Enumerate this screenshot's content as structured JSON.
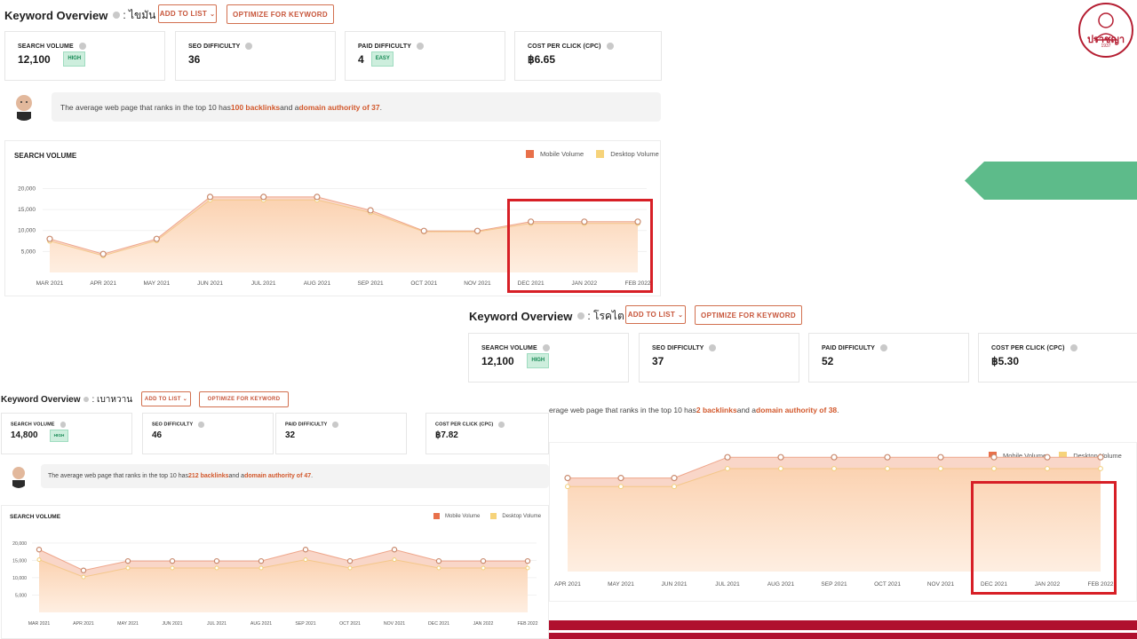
{
  "colors": {
    "accent": "#d2582c",
    "mobile": "#e8704a",
    "desktop": "#f6d37a",
    "badge_bg": "#cdeedd",
    "badge_text": "#178a55",
    "highlight": "#d71f26",
    "arrow": "#5dbb8a",
    "bottom_bar": "#b0102e"
  },
  "logo": {
    "text": "ปราชญา",
    "sub": "1937",
    "icon": "brand-logo"
  },
  "panels": [
    {
      "title": "Keyword Overview",
      "keyword": ": ไขมัน",
      "add_btn": "ADD TO LIST",
      "opt_btn": "OPTIMIZE FOR KEYWORD",
      "cards": [
        {
          "label": "SEARCH VOLUME",
          "value": "12,100",
          "badge": "HIGH"
        },
        {
          "label": "SEO DIFFICULTY",
          "value": "36",
          "badge": ""
        },
        {
          "label": "PAID DIFFICULTY",
          "value": "4",
          "badge": "EASY"
        },
        {
          "label": "COST PER CLICK (CPC)",
          "value": "฿6.65",
          "badge": ""
        }
      ],
      "tip": {
        "pre": "The average web page that ranks in the top 10 has ",
        "b1": "100 backlinks",
        "mid": " and a ",
        "b2": "domain authority of 37",
        "post": "."
      },
      "chart_title": "SEARCH VOLUME",
      "legend_mobile": "Mobile Volume",
      "legend_desktop": "Desktop Volume"
    },
    {
      "title": "Keyword Overview",
      "keyword": ": โรคไต",
      "add_btn": "ADD TO LIST",
      "opt_btn": "OPTIMIZE FOR KEYWORD",
      "cards": [
        {
          "label": "SEARCH VOLUME",
          "value": "12,100",
          "badge": "HIGH"
        },
        {
          "label": "SEO DIFFICULTY",
          "value": "37",
          "badge": ""
        },
        {
          "label": "PAID DIFFICULTY",
          "value": "52",
          "badge": ""
        },
        {
          "label": "COST PER CLICK (CPC)",
          "value": "฿5.30",
          "badge": ""
        }
      ],
      "tip": {
        "pre": "erage web page that ranks in the top 10 has ",
        "b1": "2 backlinks",
        "mid": " and a ",
        "b2": "domain authority of 38",
        "post": "."
      },
      "chart_title": "",
      "legend_mobile": "Mobile Volume",
      "legend_desktop": "Desktop Volume"
    },
    {
      "title": "Keyword Overview",
      "keyword": ": เบาหวาน",
      "add_btn": "ADD TO LIST",
      "opt_btn": "OPTIMIZE FOR KEYWORD",
      "cards": [
        {
          "label": "SEARCH VOLUME",
          "value": "14,800",
          "badge": "HIGH"
        },
        {
          "label": "SEO DIFFICULTY",
          "value": "46",
          "badge": ""
        },
        {
          "label": "PAID DIFFICULTY",
          "value": "32",
          "badge": ""
        },
        {
          "label": "COST PER CLICK (CPC)",
          "value": "฿7.82",
          "badge": ""
        }
      ],
      "tip": {
        "pre": "The average web page that ranks in the top 10 has ",
        "b1": "212 backlinks",
        "mid": " and a ",
        "b2": "domain authority of 47",
        "post": "."
      },
      "chart_title": "SEARCH VOLUME",
      "legend_mobile": "Mobile Volume",
      "legend_desktop": "Desktop Volume"
    }
  ],
  "chart_data": [
    {
      "type": "area",
      "categories": [
        "MAR 2021",
        "APR 2021",
        "MAY 2021",
        "JUN 2021",
        "JUL 2021",
        "AUG 2021",
        "SEP 2021",
        "OCT 2021",
        "NOV 2021",
        "DEC 2021",
        "JAN 2022",
        "FEB 2022"
      ],
      "series": [
        {
          "name": "Mobile Volume",
          "values": [
            8000,
            4400,
            8000,
            18000,
            18000,
            18000,
            14800,
            9900,
            9900,
            12100,
            12100,
            12100
          ]
        },
        {
          "name": "Desktop Volume",
          "values": [
            7500,
            4000,
            7600,
            17300,
            17300,
            17300,
            14300,
            9700,
            9700,
            11700,
            11700,
            11700
          ]
        }
      ],
      "yticks": [
        "5,000",
        "10,000",
        "15,000",
        "20,000"
      ],
      "ylim": [
        0,
        22000
      ]
    },
    {
      "type": "area",
      "categories": [
        "APR 2021",
        "MAY 2021",
        "JUN 2021",
        "JUL 2021",
        "AUG 2021",
        "SEP 2021",
        "OCT 2021",
        "NOV 2021",
        "DEC 2021",
        "JAN 2022",
        "FEB 2022"
      ],
      "series": [
        {
          "name": "Mobile Volume",
          "values": [
            9900,
            9900,
            9900,
            12100,
            12100,
            12100,
            12100,
            12100,
            12100,
            12100,
            12100
          ]
        },
        {
          "name": "Desktop Volume",
          "values": [
            9000,
            9000,
            9000,
            10900,
            10900,
            10900,
            10900,
            10900,
            10900,
            10900,
            10900
          ]
        }
      ],
      "yticks": [],
      "ylim": [
        0,
        15500
      ]
    },
    {
      "type": "area",
      "categories": [
        "MAR 2021",
        "APR 2021",
        "MAY 2021",
        "JUN 2021",
        "JUL 2021",
        "AUG 2021",
        "SEP 2021",
        "OCT 2021",
        "NOV 2021",
        "DEC 2021",
        "JAN 2022",
        "FEB 2022"
      ],
      "series": [
        {
          "name": "Mobile Volume",
          "values": [
            18100,
            12100,
            14800,
            14800,
            14800,
            14800,
            18100,
            14800,
            18100,
            14800,
            14800,
            14800
          ]
        },
        {
          "name": "Desktop Volume",
          "values": [
            15200,
            10200,
            12800,
            12800,
            12800,
            12800,
            15200,
            12800,
            15200,
            12800,
            12800,
            12800
          ]
        }
      ],
      "yticks": [
        "5,000",
        "10,000",
        "15,000",
        "20,000"
      ],
      "ylim": [
        0,
        22000
      ]
    }
  ]
}
